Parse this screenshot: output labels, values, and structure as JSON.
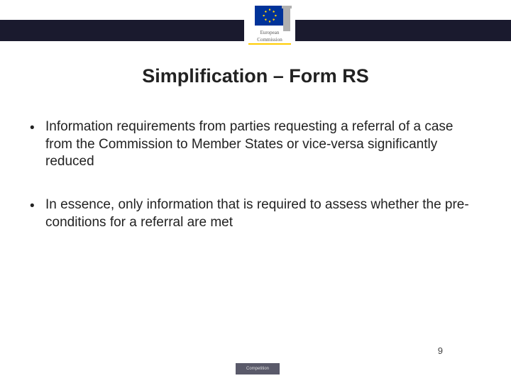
{
  "header": {
    "logo_line1": "European",
    "logo_line2": "Commission"
  },
  "title": "Simplification – Form RS",
  "bullets": [
    "Information requirements from parties requesting a referral of a case from the Commission to Member States or vice-versa significantly reduced",
    "In essence, only information that is required to assess whether the pre-conditions for a referral are met"
  ],
  "page_number": "9",
  "footer_label": "Competition",
  "colors": {
    "strip": "#1a1a2e",
    "flag_bg": "#003399",
    "flag_star": "#ffcc00",
    "text": "#222222"
  }
}
